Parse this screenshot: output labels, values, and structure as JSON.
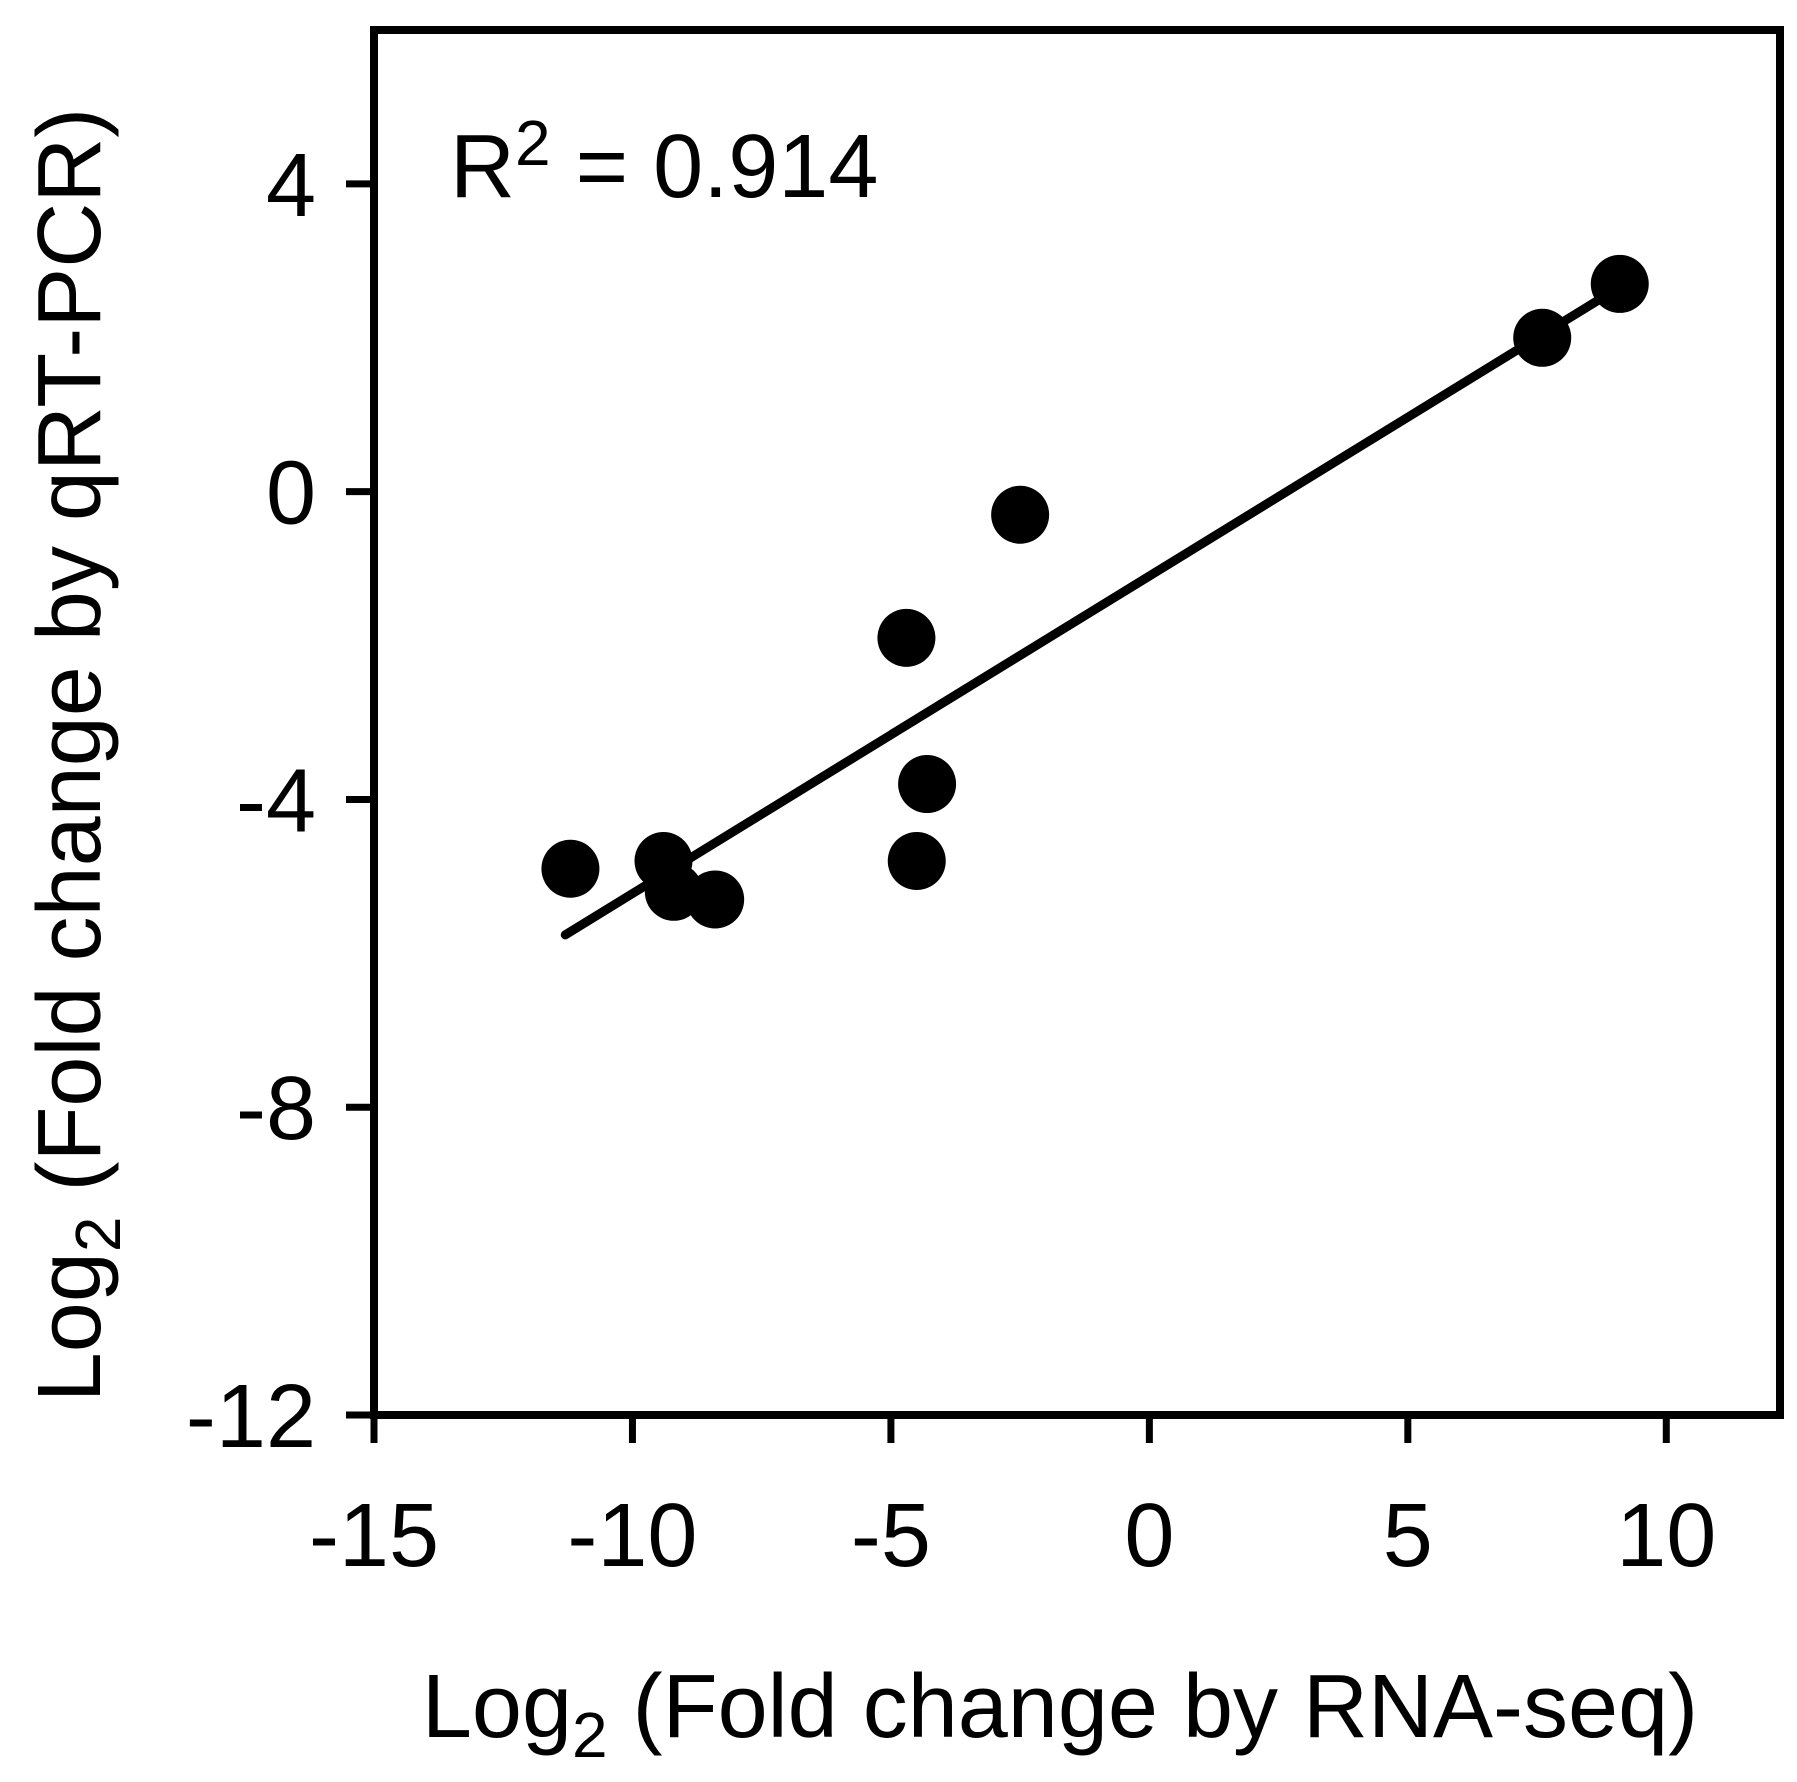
{
  "chart_data": {
    "type": "scatter",
    "title": "",
    "annotation": {
      "base": "R",
      "sup": "2",
      "rest": " = 0.914"
    },
    "r_squared": 0.914,
    "xlabel": {
      "base": "Log",
      "sub": "2",
      "rest": " (Fold change by RNA-seq)"
    },
    "ylabel": {
      "base": "Log",
      "sub": "2",
      "rest": " (Fold change by qRT-PCR)"
    },
    "xlim": [
      -15,
      12.2
    ],
    "ylim": [
      -12,
      6
    ],
    "x_ticks": [
      -15,
      -10,
      -5,
      0,
      5,
      10
    ],
    "y_ticks": [
      4,
      0,
      -4,
      -8,
      -12
    ],
    "grid": false,
    "legend_position": "none",
    "points": [
      {
        "x": -11.2,
        "y": -4.9
      },
      {
        "x": -9.4,
        "y": -4.8
      },
      {
        "x": -9.2,
        "y": -5.2
      },
      {
        "x": -8.4,
        "y": -5.3
      },
      {
        "x": -4.7,
        "y": -1.9
      },
      {
        "x": -4.3,
        "y": -3.8
      },
      {
        "x": -4.5,
        "y": -4.8
      },
      {
        "x": -2.5,
        "y": -0.3
      },
      {
        "x": 7.6,
        "y": 2.0
      },
      {
        "x": 9.1,
        "y": 2.7
      }
    ],
    "fit_line": {
      "x1": -11.3,
      "y1": -5.76,
      "x2": 9.1,
      "y2": 2.66
    },
    "colors": {
      "point": "#000000",
      "line": "#000000",
      "frame": "#000000",
      "text": "#000000",
      "background": "#ffffff"
    }
  }
}
